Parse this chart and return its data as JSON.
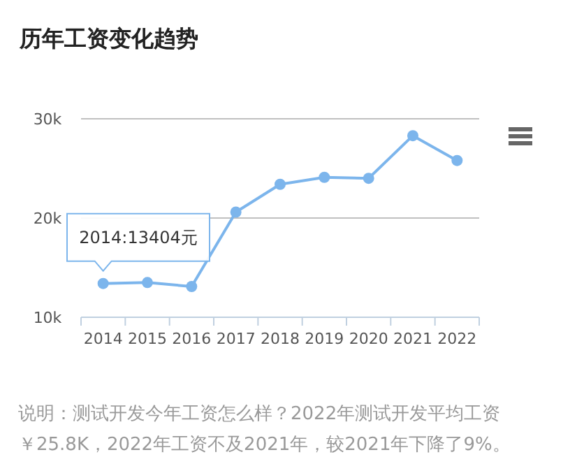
{
  "chart_data": {
    "type": "line",
    "title": "历年工资变化趋势",
    "categories": [
      "2014",
      "2015",
      "2016",
      "2017",
      "2018",
      "2019",
      "2020",
      "2021",
      "2022"
    ],
    "series": [
      {
        "color": "#7cb5ec",
        "values": [
          13404,
          13500,
          13100,
          20600,
          23400,
          24100,
          24000,
          28300,
          25800
        ]
      }
    ],
    "ylim": [
      10000,
      30000
    ],
    "yticks": [
      {
        "value": 10000,
        "label": "10k"
      },
      {
        "value": 20000,
        "label": "20k"
      },
      {
        "value": 30000,
        "label": "30k"
      }
    ],
    "grid": "y",
    "marker": "circle",
    "line_style": "solid",
    "annotations": [
      {
        "text": "2014:13404元",
        "x": "2014",
        "y": 13404
      },
      "说明：测试开发今年工资怎么样？2022年测试开发平均工资￥25.8K，2022年工资不及2021年，较2021年下降了9%。"
    ]
  }
}
